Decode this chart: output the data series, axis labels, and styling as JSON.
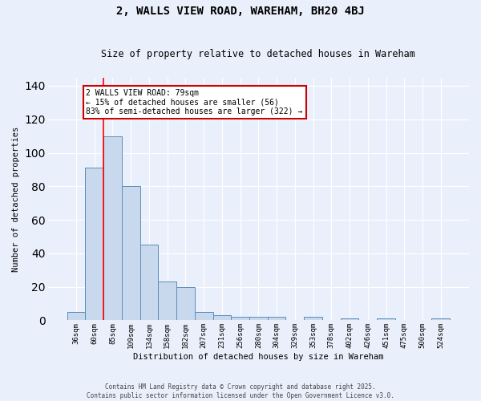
{
  "title": "2, WALLS VIEW ROAD, WAREHAM, BH20 4BJ",
  "subtitle": "Size of property relative to detached houses in Wareham",
  "xlabel": "Distribution of detached houses by size in Wareham",
  "ylabel": "Number of detached properties",
  "bin_labels": [
    "36sqm",
    "60sqm",
    "85sqm",
    "109sqm",
    "134sqm",
    "158sqm",
    "182sqm",
    "207sqm",
    "231sqm",
    "256sqm",
    "280sqm",
    "304sqm",
    "329sqm",
    "353sqm",
    "378sqm",
    "402sqm",
    "426sqm",
    "451sqm",
    "475sqm",
    "500sqm",
    "524sqm"
  ],
  "bar_heights": [
    5,
    91,
    110,
    80,
    45,
    23,
    20,
    5,
    3,
    2,
    2,
    2,
    0,
    2,
    0,
    1,
    0,
    1,
    0,
    0,
    1
  ],
  "bar_color": "#c9d9ed",
  "bar_edge_color": "#5b8db8",
  "background_color": "#eaf0fb",
  "grid_color": "#ffffff",
  "red_line_x": 1.5,
  "annotation_text": "2 WALLS VIEW ROAD: 79sqm\n← 15% of detached houses are smaller (56)\n83% of semi-detached houses are larger (322) →",
  "annotation_box_color": "#ffffff",
  "annotation_border_color": "#cc0000",
  "footer_line1": "Contains HM Land Registry data © Crown copyright and database right 2025.",
  "footer_line2": "Contains public sector information licensed under the Open Government Licence v3.0.",
  "ylim": [
    0,
    145
  ],
  "yticks": [
    0,
    20,
    40,
    60,
    80,
    100,
    120,
    140
  ]
}
